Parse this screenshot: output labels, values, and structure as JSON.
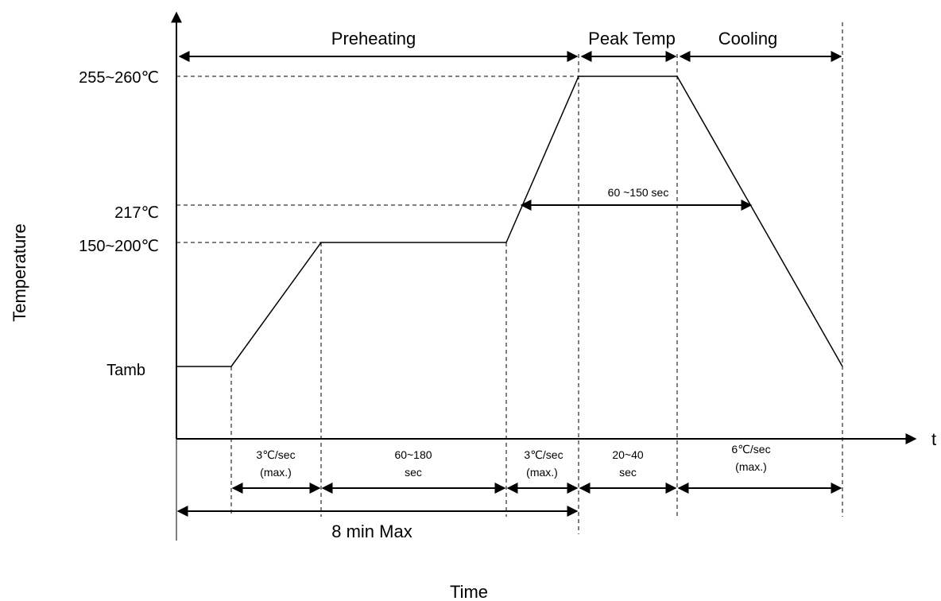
{
  "axes": {
    "y_label": "Temperature",
    "x_label": "Time",
    "x_axis_end_label": "t"
  },
  "y_levels": {
    "peak": "255~260℃",
    "liquidus": "217℃",
    "soak": "150~200℃",
    "ambient": "Tamb"
  },
  "phases": {
    "preheating": "Preheating",
    "peak_temp": "Peak Temp",
    "cooling": "Cooling"
  },
  "above_liquidus_time": "60 ~150 sec",
  "intervals": {
    "ramp_up_1": {
      "line1": "3℃/sec",
      "line2": "(max.)"
    },
    "soak_time": {
      "line1": "60~180",
      "line2": "sec"
    },
    "ramp_up_2": {
      "line1": "3℃/sec",
      "line2": "(max.)"
    },
    "peak_time": {
      "line1": "20~40",
      "line2": "sec"
    },
    "ramp_down": {
      "line1": "6℃/sec",
      "line2": "(max.)"
    }
  },
  "total_time": "8 min Max"
}
